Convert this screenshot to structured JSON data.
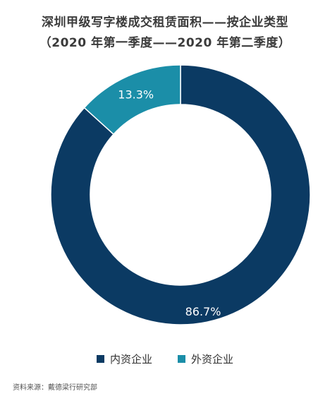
{
  "chart_data": {
    "type": "pie",
    "variant": "donut",
    "title_line1": "深圳甲级写字楼成交租赁面积——按企业类型",
    "title_line2": "（2020 年第一季度——2020 年第二季度）",
    "categories": [
      "内资企业",
      "外资企业"
    ],
    "values": [
      86.7,
      13.3
    ],
    "value_labels": [
      "86.7%",
      "13.3%"
    ],
    "colors": [
      "#0b3a63",
      "#1b8ea8"
    ],
    "legend_position": "bottom"
  },
  "source": "资料来源：戴德梁行研究部"
}
